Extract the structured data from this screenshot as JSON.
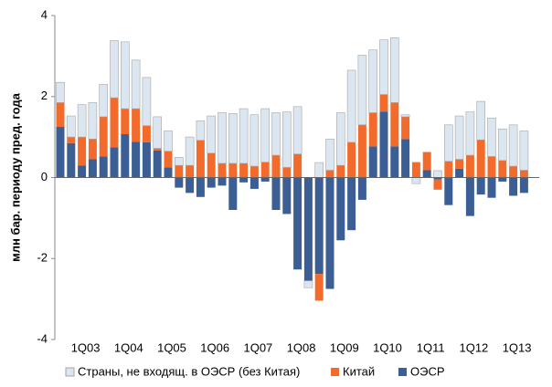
{
  "chart_data": {
    "type": "stacked_bar",
    "ylabel": "млн бар. периоду пред. года",
    "categories": [
      null,
      null,
      "1Q03",
      null,
      null,
      null,
      "1Q04",
      null,
      null,
      null,
      "1Q05",
      null,
      null,
      null,
      "1Q06",
      null,
      null,
      null,
      "1Q07",
      null,
      null,
      null,
      "1Q08",
      null,
      null,
      null,
      "1Q09",
      null,
      null,
      null,
      "1Q10",
      null,
      null,
      null,
      "1Q11",
      null,
      null,
      null,
      "1Q12",
      null,
      null,
      null,
      "1Q13",
      null
    ],
    "series": [
      {
        "name": "ОЭСР",
        "color": "#3b5e94",
        "values": [
          1.25,
          0.85,
          0.3,
          0.45,
          0.52,
          0.75,
          1.07,
          0.88,
          0.87,
          0.67,
          0.25,
          -0.25,
          -0.38,
          -0.48,
          -0.25,
          -0.2,
          -0.8,
          -0.12,
          -0.28,
          -0.1,
          -0.8,
          -0.9,
          -2.27,
          -2.55,
          -2.38,
          -2.75,
          -1.55,
          -1.3,
          -0.55,
          0.77,
          1.63,
          0.77,
          0.95,
          0,
          0.18,
          -0.05,
          -0.68,
          0.22,
          -0.95,
          -0.42,
          -0.5,
          -0.1,
          -0.45,
          -0.38
        ]
      },
      {
        "name": "Китай",
        "color": "#f26b2c",
        "values": [
          0.6,
          0.15,
          0.7,
          0.5,
          0.98,
          1.22,
          0.63,
          0.82,
          0.41,
          0.05,
          0.4,
          0.3,
          0.3,
          0.92,
          0.6,
          0.35,
          0.35,
          0.35,
          0.28,
          0.38,
          0.55,
          0.25,
          0.58,
          0,
          -0.66,
          0.18,
          0.3,
          0.87,
          1.3,
          0.83,
          0.42,
          1.08,
          0.55,
          0.38,
          0.45,
          -0.25,
          0.4,
          0.23,
          0.55,
          0.93,
          0.52,
          0.42,
          0.28,
          0.18
        ]
      },
      {
        "name": "Страны, не входящ. в ОЭСР (без Китая)",
        "color": "#dce6f1",
        "values": [
          0.5,
          0.52,
          0.8,
          0.9,
          0.8,
          1.41,
          1.65,
          1.2,
          1.19,
          0.78,
          0.5,
          0.2,
          0.7,
          0.48,
          0.92,
          1.25,
          1.23,
          1.35,
          1.27,
          1.32,
          1.05,
          1.37,
          1.17,
          -0.17,
          0.37,
          0.77,
          1.3,
          1.78,
          1.72,
          1.55,
          1.35,
          1.6,
          0.05,
          -0.15,
          0,
          0.17,
          0.9,
          1.07,
          1.07,
          0.95,
          0.95,
          0.78,
          1.02,
          0.97
        ]
      }
    ],
    "ylim": [
      -4,
      4
    ],
    "yticks": [
      -4,
      -2,
      0,
      2,
      4
    ],
    "grid": false,
    "legend": "bottom"
  }
}
